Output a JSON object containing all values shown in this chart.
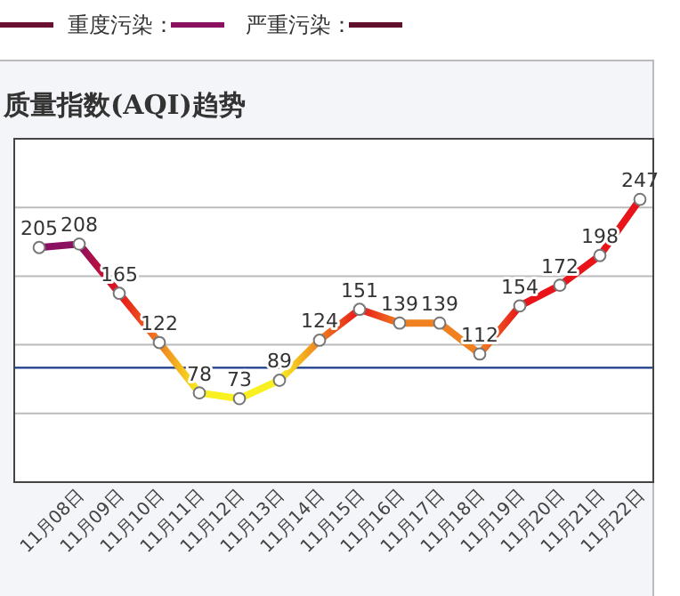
{
  "chart_data": {
    "type": "line",
    "title": "质量指数(AQI)趋势",
    "annotations": [
      "重度污染：",
      "严重污染："
    ],
    "categories": [
      null,
      "11月08日",
      "11月09日",
      "11月10日",
      "11月11日",
      "11月12日",
      "11月13日",
      "11月14日",
      "11月15日",
      "11月16日",
      "11月17日",
      "11月18日",
      "11月19日",
      "11月20日",
      "11月21日",
      "11月22日"
    ],
    "series": [
      {
        "values": [
          205,
          208,
          165,
          122,
          78,
          73,
          89,
          124,
          151,
          139,
          139,
          112,
          154,
          172,
          198,
          247
        ],
        "colors": [
          "#8b1060",
          "#8b1060",
          "#e8141a",
          "#f08020",
          "#f8f020",
          "#f8f020",
          "#f8f020",
          "#f08020",
          "#e8141a",
          "#f08020",
          "#f08020",
          "#f08020",
          "#e8141a",
          "#e8141a",
          "#e8141a",
          "#e8141a"
        ]
      }
    ],
    "ylim": [
      0,
      300
    ],
    "yticks": [
      {
        "value": 0,
        "label": null
      },
      {
        "value": 60,
        "label": null
      },
      {
        "value": 120,
        "label": null
      },
      {
        "value": 180,
        "label": null
      },
      {
        "value": 240,
        "label": null
      },
      {
        "value": 300,
        "label": null
      }
    ],
    "tick_labels": "x",
    "grid": "y",
    "marker": "circle",
    "data_labels": true,
    "ref_lines": [
      {
        "axis": "y",
        "value": 100,
        "color": "#1a3a8a"
      }
    ]
  }
}
